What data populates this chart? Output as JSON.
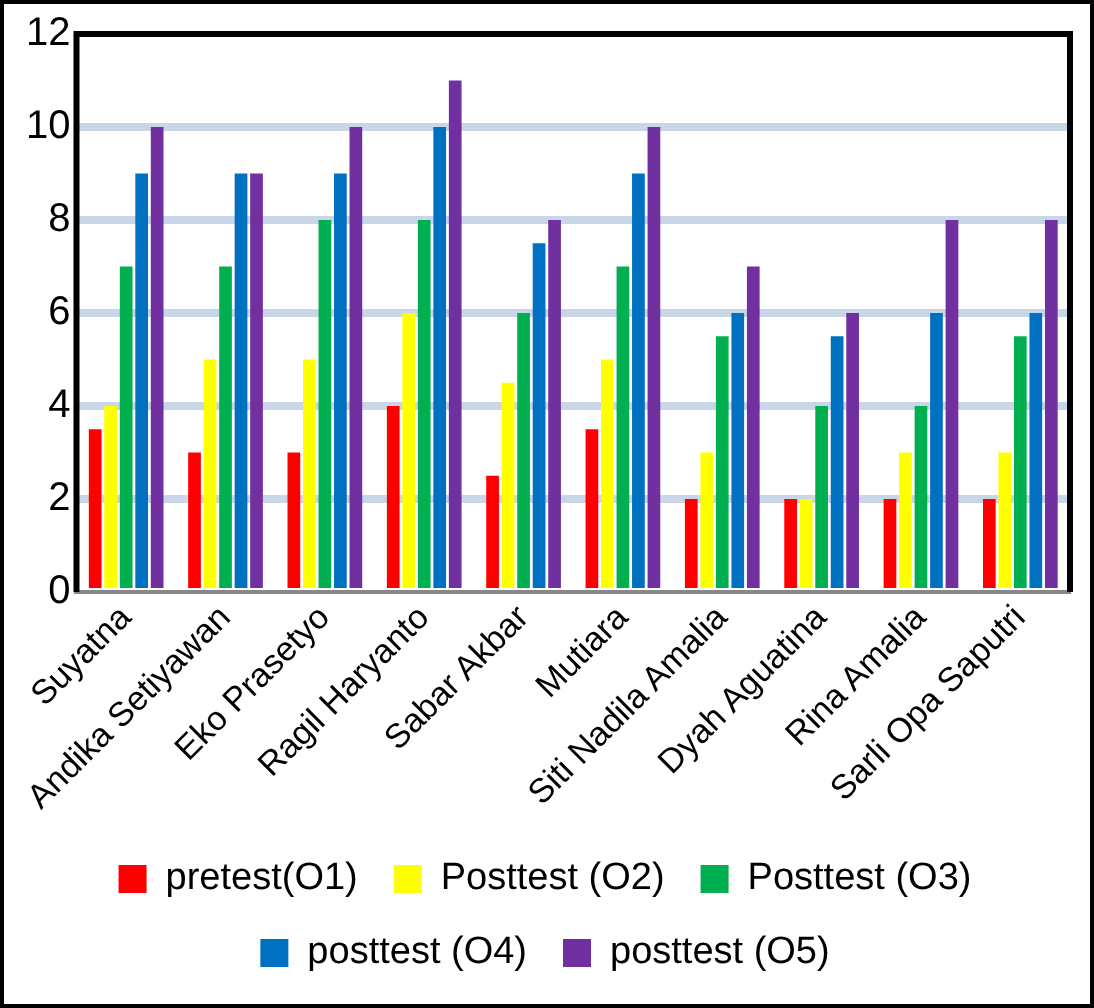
{
  "chart_data": {
    "type": "bar",
    "categories": [
      "Suyatna",
      "Andika Setiyawan",
      "Eko Prasetyo",
      "Ragil Haryanto",
      "Sabar Akbar",
      "Mutiara",
      "Siti Nadila Amalia",
      "Dyah Aguatina",
      "Rina Amalia",
      "Sarli Opa Saputri"
    ],
    "series": [
      {
        "name": "pretest(O1)",
        "color": "#ff0000",
        "values": [
          3.5,
          3,
          3,
          4,
          2.5,
          3.5,
          2,
          2,
          2,
          2
        ]
      },
      {
        "name": "Posttest (O2)",
        "color": "#ffff00",
        "values": [
          4,
          5,
          5,
          6,
          4.5,
          5,
          3,
          2,
          3,
          3
        ]
      },
      {
        "name": "Posttest (O3)",
        "color": "#00b050",
        "values": [
          7,
          7,
          8,
          8,
          6,
          7,
          5.5,
          4,
          4,
          5.5
        ]
      },
      {
        "name": "posttest (O4)",
        "color": "#0070c0",
        "values": [
          9,
          9,
          9,
          10,
          7.5,
          9,
          6,
          5.5,
          6,
          6
        ]
      },
      {
        "name": "posttest (O5)",
        "color": "#7030a0",
        "values": [
          10,
          9,
          10,
          11,
          8,
          10,
          7,
          6,
          8,
          8
        ]
      }
    ],
    "ylim": [
      0,
      12
    ],
    "yticks": [
      0,
      2,
      4,
      6,
      8,
      10,
      12
    ],
    "grid": "y",
    "legend": "bottom"
  }
}
